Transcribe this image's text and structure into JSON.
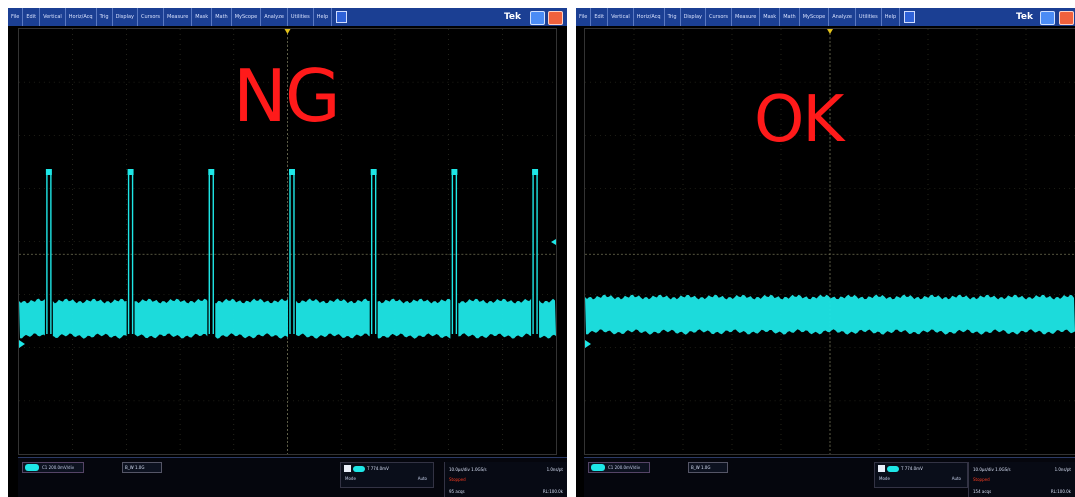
{
  "menu": [
    "File",
    "Edit",
    "Vertical",
    "Horiz/Acq",
    "Trig",
    "Display",
    "Cursors",
    "Measure",
    "Mask",
    "Math",
    "MyScope",
    "Analyze",
    "Utilities",
    "Help"
  ],
  "brand": "Tek",
  "colors": {
    "trace": "#1ee7e7",
    "label": "#ff1a1a",
    "menubar": "#1b3f93",
    "grid": "#6b6b4f"
  },
  "scopes": [
    {
      "label": "NG",
      "pulses": "present",
      "status": {
        "ch1": "C1  200.0mV/div",
        "bw": "B_W 1.0G",
        "trigger": "T  774.0mV",
        "trigger_mode": "Auto",
        "trigger_mode_label": "Mode",
        "horizontal": "10.0µs/div  1.0GS/s",
        "horizontal_right": "1.0ns/pt",
        "state": "Stopped",
        "acqs": "95 acqs",
        "record_length": "RL:100.0k"
      }
    },
    {
      "label": "OK",
      "pulses": "absent",
      "status": {
        "ch1": "C1  200.0mV/div",
        "bw": "B_W 1.0G",
        "trigger": "T  774.0mV",
        "trigger_mode": "Auto",
        "trigger_mode_label": "Mode",
        "horizontal": "10.0µs/div  1.0GS/s",
        "horizontal_right": "1.0ns/pt",
        "state": "Stopped",
        "acqs": "154 acqs",
        "record_length": "RL:100.0k"
      }
    }
  ]
}
